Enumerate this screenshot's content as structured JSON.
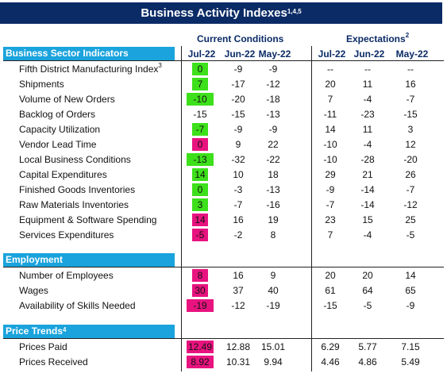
{
  "title": {
    "text": "Business Activity Indexes",
    "sup": "1,4,5"
  },
  "headers": {
    "current": "Current Conditions",
    "expectations": {
      "text": "Expectations",
      "sup": "2"
    }
  },
  "columns": [
    "Jul-22",
    "Jun-22",
    "May-22",
    "Jul-22",
    "Jun-22",
    "May-22"
  ],
  "highlight_colors": {
    "green": "#3de01a",
    "pink": "#e8137f"
  },
  "sections": [
    {
      "title": "Business Sector Indicators",
      "rows": [
        {
          "label": "Fifth District Manufacturing Index",
          "label_sup": "3",
          "highlight": "green",
          "cells": [
            "0",
            "-9",
            "-9",
            "--",
            "--",
            "--"
          ]
        },
        {
          "label": "Shipments",
          "highlight": "green",
          "cells": [
            "7",
            "-17",
            "-12",
            "20",
            "11",
            "16"
          ]
        },
        {
          "label": "Volume of New Orders",
          "highlight": "green",
          "cells": [
            "-10",
            "-20",
            "-18",
            "7",
            "-4",
            "-7"
          ]
        },
        {
          "label": "Backlog of Orders",
          "cells": [
            "-15",
            "-15",
            "-13",
            "-11",
            "-23",
            "-15"
          ]
        },
        {
          "label": "Capacity Utilization",
          "highlight": "green",
          "cells": [
            "-7",
            "-9",
            "-9",
            "14",
            "11",
            "3"
          ]
        },
        {
          "label": "Vendor Lead Time",
          "highlight": "pink",
          "cells": [
            "0",
            "9",
            "22",
            "-10",
            "-4",
            "12"
          ]
        },
        {
          "label": "Local Business Conditions",
          "highlight": "green",
          "cells": [
            "-13",
            "-32",
            "-22",
            "-10",
            "-28",
            "-20"
          ]
        },
        {
          "label": "Capital Expenditures",
          "highlight": "green",
          "cells": [
            "14",
            "10",
            "18",
            "29",
            "21",
            "26"
          ]
        },
        {
          "label": "Finished Goods Inventories",
          "highlight": "green",
          "cells": [
            "0",
            "-3",
            "-13",
            "-9",
            "-14",
            "-7"
          ]
        },
        {
          "label": "Raw Materials Inventories",
          "highlight": "green",
          "cells": [
            "3",
            "-7",
            "-16",
            "-7",
            "-14",
            "-12"
          ]
        },
        {
          "label": "Equipment & Software Spending",
          "highlight": "pink",
          "cells": [
            "14",
            "16",
            "19",
            "23",
            "15",
            "25"
          ]
        },
        {
          "label": "Services Expenditures",
          "highlight": "pink",
          "cells": [
            "-5",
            "-2",
            "8",
            "7",
            "-4",
            "-5"
          ]
        }
      ]
    },
    {
      "title": "Employment",
      "rows": [
        {
          "label": "Number of Employees",
          "highlight": "pink",
          "cells": [
            "8",
            "16",
            "9",
            "20",
            "20",
            "14"
          ]
        },
        {
          "label": "Wages",
          "highlight": "pink",
          "cells": [
            "30",
            "37",
            "40",
            "61",
            "64",
            "65"
          ]
        },
        {
          "label": "Availability of Skills Needed",
          "highlight": "pink",
          "cells": [
            "-19",
            "-12",
            "-19",
            "-15",
            "-5",
            "-9"
          ]
        }
      ]
    },
    {
      "title": "Price Trends",
      "sup": "4",
      "rows": [
        {
          "label": "Prices Paid",
          "highlight": "pink",
          "cells": [
            "12.49",
            "12.88",
            "15.01",
            "6.29",
            "5.77",
            "7.15"
          ]
        },
        {
          "label": "Prices Received",
          "highlight": "pink",
          "cells": [
            "8.92",
            "10.31",
            "9.94",
            "4.46",
            "4.86",
            "5.49"
          ]
        }
      ]
    }
  ]
}
